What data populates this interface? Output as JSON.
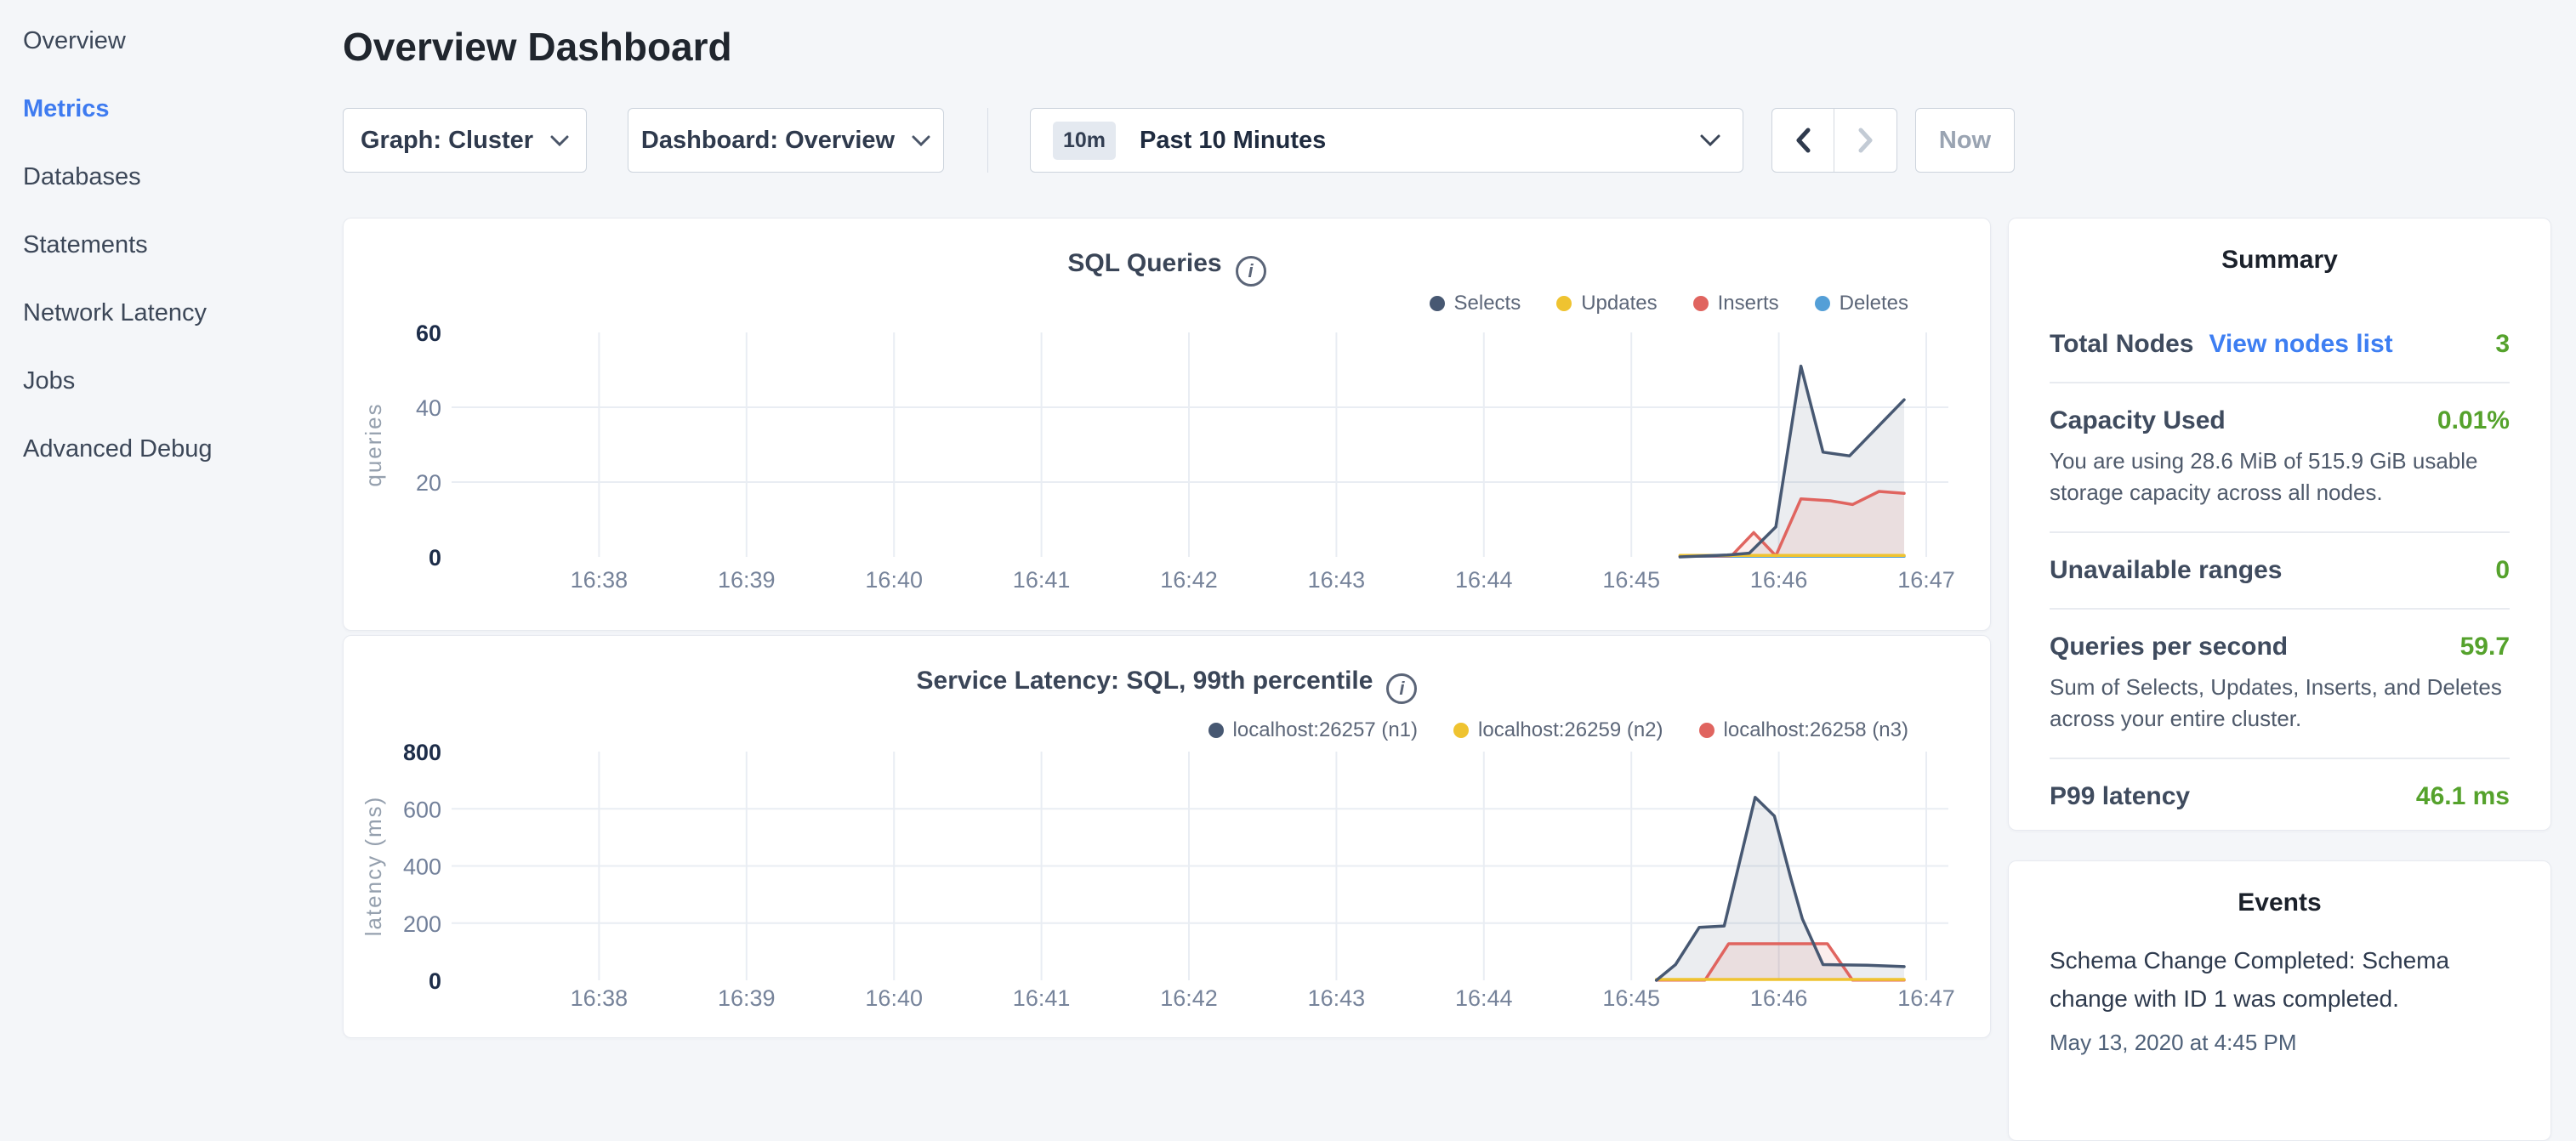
{
  "sidebar": {
    "items": [
      {
        "label": "Overview",
        "active": false
      },
      {
        "label": "Metrics",
        "active": true
      },
      {
        "label": "Databases",
        "active": false
      },
      {
        "label": "Statements",
        "active": false
      },
      {
        "label": "Network Latency",
        "active": false
      },
      {
        "label": "Jobs",
        "active": false
      },
      {
        "label": "Advanced Debug",
        "active": false
      }
    ]
  },
  "header": {
    "title": "Overview Dashboard"
  },
  "controls": {
    "graph_dropdown": "Graph: Cluster",
    "dashboard_dropdown": "Dashboard: Overview",
    "time_badge": "10m",
    "time_label": "Past 10 Minutes",
    "back_arrow": "chevron-left",
    "forward_arrow": "chevron-right",
    "now_button": "Now"
  },
  "chart_data": [
    {
      "type": "area",
      "title": "SQL Queries",
      "ylabel": "queries",
      "ylim": [
        0,
        60
      ],
      "yticks": [
        0,
        20,
        40,
        60
      ],
      "xlim": [
        37.0,
        47.15
      ],
      "grid": true,
      "legend_position": "top-right",
      "xticks": [
        {
          "minute": 38,
          "label": "16:38"
        },
        {
          "minute": 39,
          "label": "16:39"
        },
        {
          "minute": 40,
          "label": "16:40"
        },
        {
          "minute": 41,
          "label": "16:41"
        },
        {
          "minute": 42,
          "label": "16:42"
        },
        {
          "minute": 43,
          "label": "16:43"
        },
        {
          "minute": 44,
          "label": "16:44"
        },
        {
          "minute": 45,
          "label": "16:45"
        },
        {
          "minute": 46,
          "label": "16:46"
        },
        {
          "minute": 47,
          "label": "16:47"
        }
      ],
      "series": [
        {
          "name": "Selects",
          "color": "#475872",
          "fill": true,
          "points": [
            [
              45.33,
              0
            ],
            [
              45.65,
              0.5
            ],
            [
              45.8,
              1
            ],
            [
              45.98,
              8
            ],
            [
              46.15,
              51
            ],
            [
              46.3,
              28
            ],
            [
              46.48,
              27
            ],
            [
              46.85,
              42
            ]
          ]
        },
        {
          "name": "Updates",
          "color": "#efc330",
          "fill": false,
          "points": [
            [
              45.33,
              0.4
            ],
            [
              46.85,
              0.4
            ]
          ]
        },
        {
          "name": "Inserts",
          "color": "#e0645f",
          "fill": true,
          "points": [
            [
              45.33,
              0.2
            ],
            [
              45.68,
              0.3
            ],
            [
              45.83,
              6.5
            ],
            [
              45.98,
              0.3
            ],
            [
              46.15,
              15.5
            ],
            [
              46.35,
              15
            ],
            [
              46.5,
              14
            ],
            [
              46.68,
              17.5
            ],
            [
              46.85,
              17
            ]
          ]
        },
        {
          "name": "Deletes",
          "color": "#549fd7",
          "fill": false,
          "points": [
            [
              45.33,
              0.15
            ],
            [
              46.85,
              0.15
            ]
          ]
        }
      ]
    },
    {
      "type": "area",
      "title": "Service Latency: SQL, 99th percentile",
      "ylabel": "latency (ms)",
      "ylim": [
        0,
        800
      ],
      "yticks": [
        0,
        200,
        400,
        600,
        800
      ],
      "xlim": [
        37.0,
        47.15
      ],
      "grid": true,
      "legend_position": "top-right",
      "xticks": [
        {
          "minute": 38,
          "label": "16:38"
        },
        {
          "minute": 39,
          "label": "16:39"
        },
        {
          "minute": 40,
          "label": "16:40"
        },
        {
          "minute": 41,
          "label": "16:41"
        },
        {
          "minute": 42,
          "label": "16:42"
        },
        {
          "minute": 43,
          "label": "16:43"
        },
        {
          "minute": 44,
          "label": "16:44"
        },
        {
          "minute": 45,
          "label": "16:45"
        },
        {
          "minute": 46,
          "label": "16:46"
        },
        {
          "minute": 47,
          "label": "16:47"
        }
      ],
      "series": [
        {
          "name": "localhost:26257 (n1)",
          "color": "#475872",
          "fill": true,
          "points": [
            [
              45.17,
              0
            ],
            [
              45.3,
              55
            ],
            [
              45.46,
              185
            ],
            [
              45.63,
              190
            ],
            [
              45.84,
              640
            ],
            [
              45.97,
              575
            ],
            [
              46.08,
              360
            ],
            [
              46.16,
              215
            ],
            [
              46.3,
              55
            ],
            [
              46.6,
              53
            ],
            [
              46.85,
              48
            ]
          ]
        },
        {
          "name": "localhost:26259 (n2)",
          "color": "#efc330",
          "fill": false,
          "points": [
            [
              45.17,
              3
            ],
            [
              46.85,
              3
            ]
          ]
        },
        {
          "name": "localhost:26258 (n3)",
          "color": "#e0645f",
          "fill": true,
          "points": [
            [
              45.17,
              1
            ],
            [
              45.5,
              1
            ],
            [
              45.66,
              128
            ],
            [
              46.33,
              128
            ],
            [
              46.5,
              1
            ],
            [
              46.85,
              1
            ]
          ]
        }
      ]
    }
  ],
  "summary": {
    "title": "Summary",
    "value_color": "#55a22c",
    "link_color": "#3d7ef2",
    "rows": [
      {
        "label": "Total Nodes",
        "link": "View nodes list",
        "value": "3"
      },
      {
        "label": "Capacity Used",
        "value": "0.01%",
        "subtext": "You are using 28.6 MiB of 515.9 GiB usable storage capacity across all nodes."
      },
      {
        "label": "Unavailable ranges",
        "value": "0"
      },
      {
        "label": "Queries per second",
        "value": "59.7",
        "subtext": "Sum of Selects, Updates, Inserts, and Deletes across your entire cluster."
      },
      {
        "label": "P99 latency",
        "value": "46.1 ms"
      }
    ]
  },
  "events": {
    "title": "Events",
    "items": [
      {
        "text": "Schema Change Completed: Schema change with ID 1 was completed.",
        "timestamp": "May 13, 2020 at 4:45 PM"
      }
    ]
  }
}
